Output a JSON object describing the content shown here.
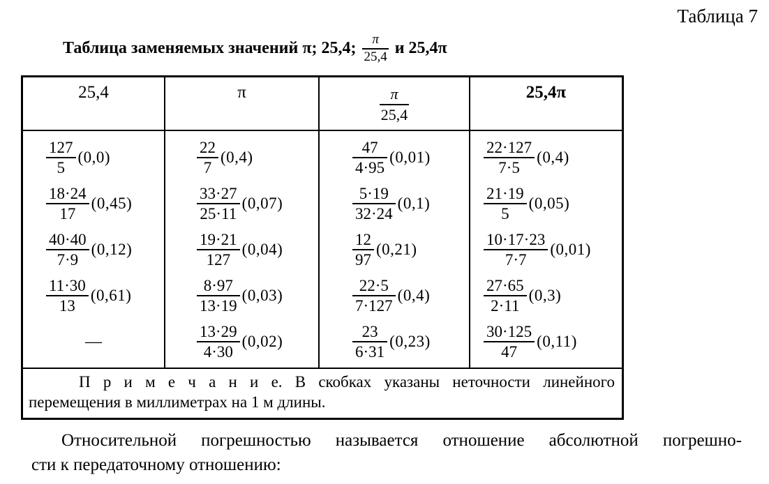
{
  "page": {
    "corner_label": "Таблица 7"
  },
  "title": {
    "prefix": "Таблица заменяемых значений π; 25,4;",
    "frac_num": "π",
    "frac_den": "25,4",
    "suffix": "и 25,4π"
  },
  "table": {
    "header_col1": "25,4",
    "header_col2": "π",
    "header_col3_num": "π",
    "header_col3_den": "25,4",
    "header_col4": "25,4π",
    "columns": [
      {
        "entries": [
          {
            "num": "127",
            "den": "5",
            "err": "(0,0)"
          },
          {
            "num": "18·24",
            "den": "17",
            "err": "(0,45)"
          },
          {
            "num": "40·40",
            "den": "7·9",
            "err": "(0,12)"
          },
          {
            "num": "11·30",
            "den": "13",
            "err": "(0,61)"
          },
          {
            "dash": "—"
          }
        ]
      },
      {
        "entries": [
          {
            "num": "22",
            "den": "7",
            "err": "(0,4)"
          },
          {
            "num": "33·27",
            "den": "25·11",
            "err": "(0,07)"
          },
          {
            "num": "19·21",
            "den": "127",
            "err": "(0,04)"
          },
          {
            "num": "8·97",
            "den": "13·19",
            "err": "(0,03)"
          },
          {
            "num": "13·29",
            "den": "4·30",
            "err": "(0,02)"
          }
        ]
      },
      {
        "entries": [
          {
            "num": "47",
            "den": "4·95",
            "err": "(0,01)"
          },
          {
            "num": "5·19",
            "den": "32·24",
            "err": "(0,1)"
          },
          {
            "num": "12",
            "den": "97",
            "err": "(0,21)"
          },
          {
            "num": "22·5",
            "den": "7·127",
            "err": "(0,4)"
          },
          {
            "num": "23",
            "den": "6·31",
            "err": "(0,23)"
          }
        ]
      },
      {
        "entries": [
          {
            "num": "22·127",
            "den": "7·5",
            "err": "(0,4)"
          },
          {
            "num": "21·19",
            "den": "5",
            "err": "(0,05)"
          },
          {
            "num": "10·17·23",
            "den": "7·7",
            "err": "(0,01)"
          },
          {
            "num": "27·65",
            "den": "2·11",
            "err": "(0,3)"
          },
          {
            "num": "30·125",
            "den": "47",
            "err": "(0,11)"
          }
        ]
      }
    ],
    "note": {
      "line1": "П р и м е ч а н и е. В скобках указаны неточности линейного",
      "line2": "перемещения в миллиметрах на 1 м длины."
    }
  },
  "paragraph": {
    "line1": "Относительной погрешностью называется отношение абсолютной погрешно-",
    "line2": "сти  к передаточному отношению:"
  }
}
